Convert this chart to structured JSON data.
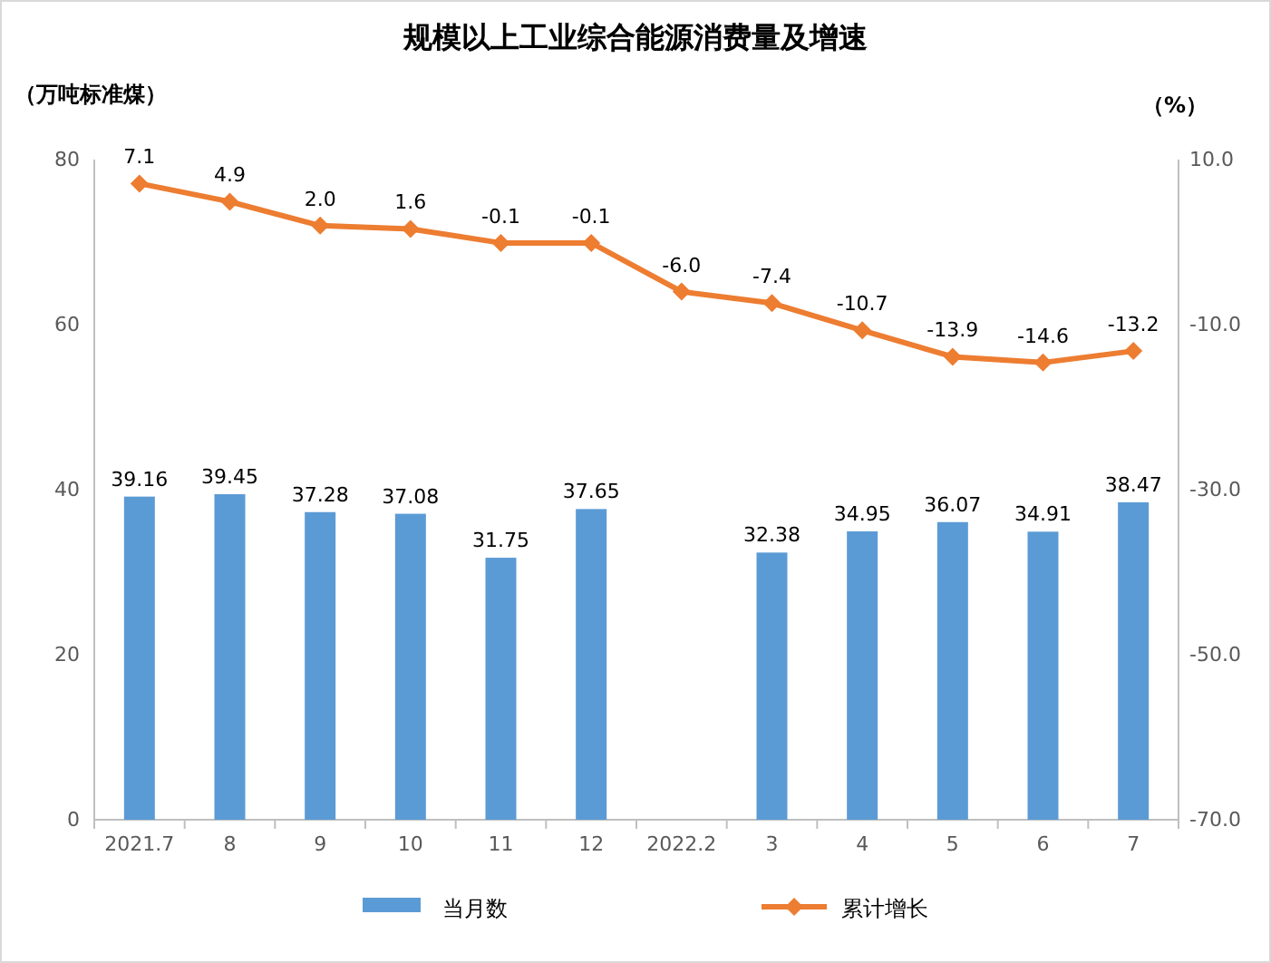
{
  "chart_data": {
    "type": "bar",
    "title": "规模以上工业综合能源消费量及增速",
    "ylabel": "（万吨标准煤）",
    "y2label": "（%）",
    "categories": [
      "2021.7",
      "8",
      "9",
      "10",
      "11",
      "12",
      "2022.2",
      "3",
      "4",
      "5",
      "6",
      "7"
    ],
    "series": [
      {
        "name": "当月数",
        "color": "#5b9bd5",
        "values": [
          39.16,
          39.45,
          37.28,
          37.08,
          31.75,
          37.65,
          null,
          32.38,
          34.95,
          36.07,
          34.91,
          38.47
        ],
        "value_labels": [
          "39.16",
          "39.45",
          "37.28",
          "37.08",
          "31.75",
          "37.65",
          null,
          "32.38",
          "34.95",
          "36.07",
          "34.91",
          "38.47"
        ]
      },
      {
        "name": "累计增长",
        "type": "line",
        "axis": "y2",
        "color": "#ed7d31",
        "values": [
          7.1,
          4.9,
          2.0,
          1.6,
          -0.1,
          -0.1,
          -6.0,
          -7.4,
          -10.7,
          -13.9,
          -14.6,
          -13.2
        ],
        "value_labels": [
          "7.1",
          "4.9",
          "2.0",
          "1.6",
          "-0.1",
          "-0.1",
          "-6.0",
          "-7.4",
          "-10.7",
          "-13.9",
          "-14.6",
          "-13.2"
        ]
      }
    ],
    "ylim": [
      0,
      80
    ],
    "yticks": [
      0,
      20,
      40,
      60,
      80
    ],
    "y2lim": [
      -70,
      10
    ],
    "y2ticks": [
      {
        "value": -70,
        "label": "-70.0"
      },
      {
        "value": -50,
        "label": "-50.0"
      },
      {
        "value": -30,
        "label": "-30.0"
      },
      {
        "value": -10,
        "label": "-10.0"
      },
      {
        "value": 10,
        "label": "10.0"
      }
    ],
    "marker": "diamond",
    "legend": "bottom"
  }
}
